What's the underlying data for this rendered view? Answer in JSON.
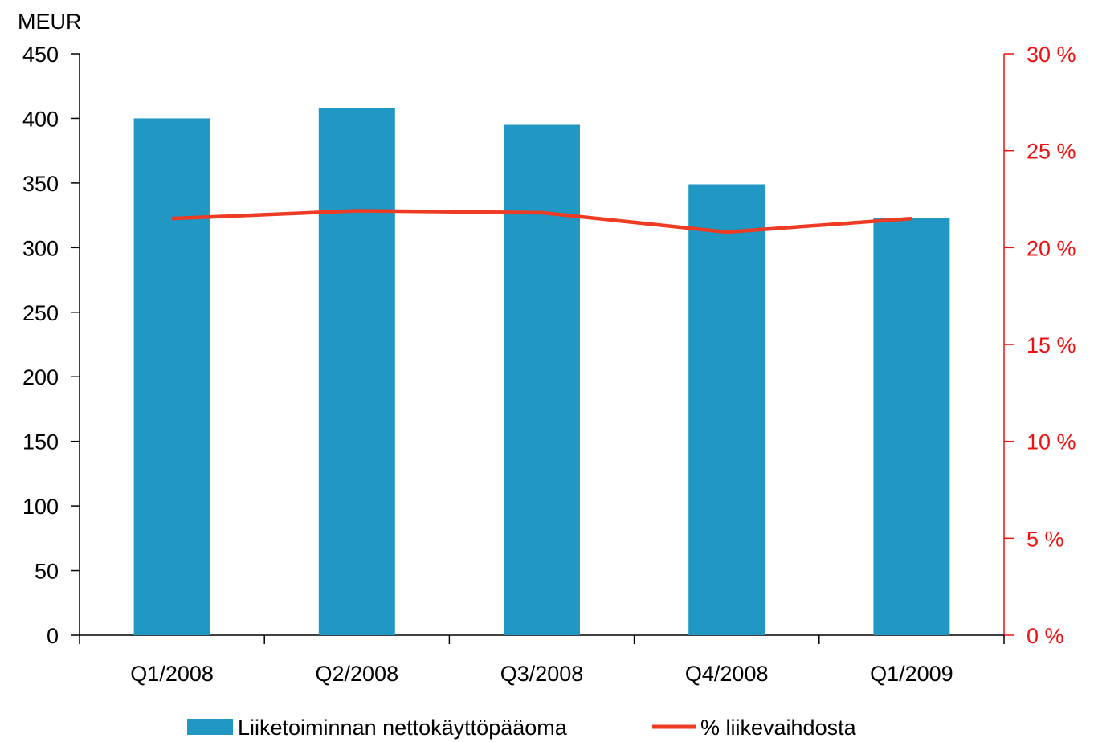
{
  "chart_data": {
    "type": "bar",
    "categories": [
      "Q1/2008",
      "Q2/2008",
      "Q3/2008",
      "Q4/2008",
      "Q1/2009"
    ],
    "series": [
      {
        "name": "Liiketoiminnan nettokäyttöpääoma",
        "type": "bar",
        "axis": "left",
        "values": [
          400,
          408,
          395,
          349,
          323
        ]
      },
      {
        "name": "% liikevaihdosta",
        "type": "line",
        "axis": "right",
        "values": [
          21.5,
          21.9,
          21.8,
          20.8,
          21.5
        ]
      }
    ],
    "ylabel": "MEUR",
    "ylim": [
      0,
      450
    ],
    "yticks": [
      "0",
      "50",
      "100",
      "150",
      "200",
      "250",
      "300",
      "350",
      "400",
      "450"
    ],
    "y2lim": [
      0,
      30
    ],
    "y2ticks": [
      "0 %",
      "5 %",
      "10 %",
      "15 %",
      "20 %",
      "25 %",
      "30 %"
    ],
    "legend": "bottom",
    "grid": false,
    "colors": {
      "bar": "#2197c4",
      "line": "#ee3b24",
      "right_axis": "#ee1111",
      "left_axis": "#000000"
    }
  }
}
